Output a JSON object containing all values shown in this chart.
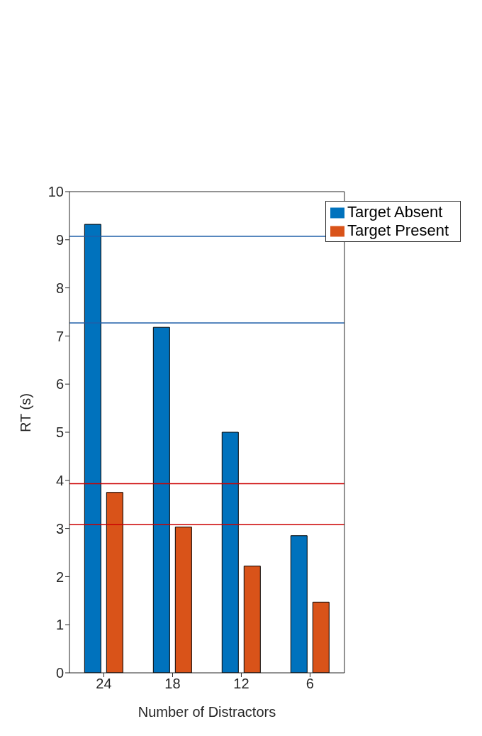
{
  "chart_data": {
    "type": "bar",
    "xlabel": "Number of Distractors",
    "ylabel": "RT (s)",
    "categories": [
      "24",
      "18",
      "12",
      "6"
    ],
    "series": [
      {
        "name": "Target Absent",
        "color": "#0072bd",
        "values": [
          9.32,
          7.18,
          5.0,
          2.85
        ]
      },
      {
        "name": "Target Present",
        "color": "#d95319",
        "values": [
          3.75,
          3.03,
          2.22,
          1.47
        ]
      }
    ],
    "ylim": [
      0,
      10
    ],
    "yticks": [
      0,
      1,
      2,
      3,
      4,
      5,
      6,
      7,
      8,
      9,
      10
    ],
    "grid": false,
    "legend": "top right",
    "ref_lines": [
      {
        "axis": "y",
        "value": 9.07,
        "color": "#1f5fa8"
      },
      {
        "axis": "y",
        "value": 7.27,
        "color": "#1f5fa8"
      },
      {
        "axis": "y",
        "value": 3.93,
        "color": "#cc0000"
      },
      {
        "axis": "y",
        "value": 3.08,
        "color": "#cc0000"
      }
    ]
  }
}
